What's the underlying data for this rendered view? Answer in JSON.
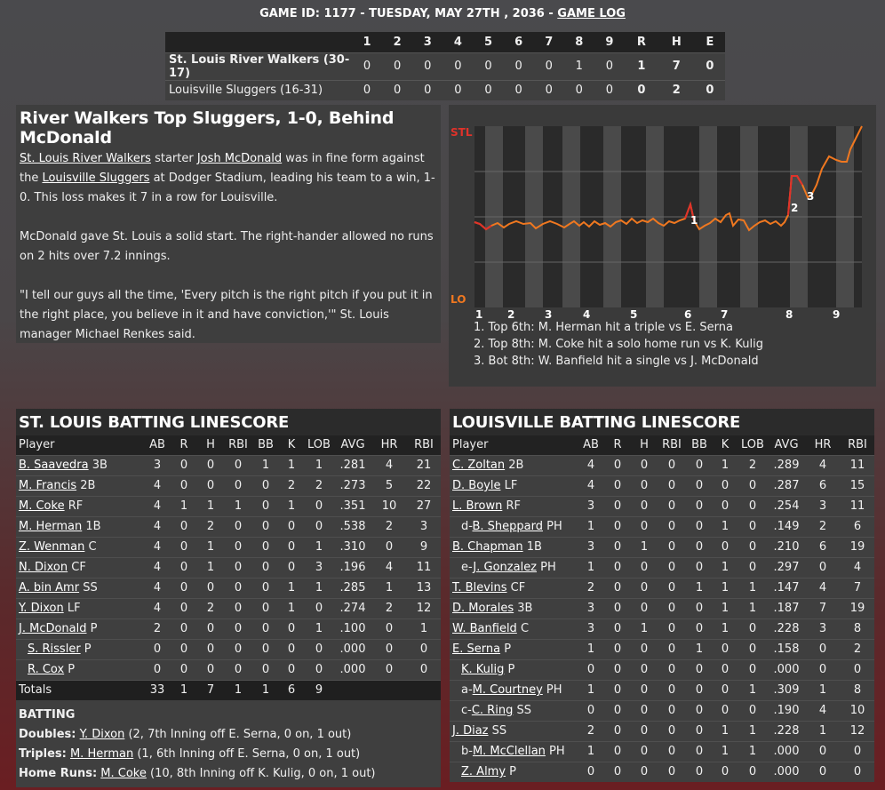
{
  "header": {
    "game_text": "GAME ID: 1177 - TUESDAY, MAY 27TH , 2036 - ",
    "game_log_link": "GAME LOG"
  },
  "linescore": {
    "innings": [
      "1",
      "2",
      "3",
      "4",
      "5",
      "6",
      "7",
      "8",
      "9",
      "R",
      "H",
      "E"
    ],
    "teams": [
      {
        "name": "St. Louis River Walkers (30-17)",
        "scores": [
          "0",
          "0",
          "0",
          "0",
          "0",
          "0",
          "0",
          "1",
          "0",
          "1",
          "7",
          "0"
        ]
      },
      {
        "name": "Louisville Sluggers (16-31)",
        "scores": [
          "0",
          "0",
          "0",
          "0",
          "0",
          "0",
          "0",
          "0",
          "0",
          "0",
          "2",
          "0"
        ]
      }
    ]
  },
  "recap": {
    "headline": "River Walkers Top Sluggers, 1-0, Behind McDonald",
    "p1_team": "St. Louis River Walkers",
    "p1_a": " starter ",
    "p1_player": "Josh McDonald",
    "p1_b": " was in fine form against the ",
    "p1_opp": "Louisville Sluggers",
    "p1_c": " at Dodger Stadium, leading his team to a win, 1-0. This loss makes it 7 in a row for Louisville.",
    "p2": "McDonald gave St. Louis a solid start. The right-hander allowed no runs on 2 hits over 7.2 innings.",
    "p3": "\"I tell our guys all the time, 'Every pitch is the right pitch if you put it in the right place, you believe in it and have conviction,'\" St. Louis manager Michael Renkes said."
  },
  "win_prob": {
    "top_label": "STL",
    "bottom_label": "LO",
    "top_color": "#e0322a",
    "bottom_color": "#f07820",
    "inning_labels": [
      "1",
      "2",
      "3",
      "4",
      "5",
      "6",
      "7",
      "8",
      "9"
    ],
    "markers": [
      "1",
      "2",
      "3"
    ],
    "notes": [
      "1. Top 6th: M. Herman hit a triple vs E. Serna",
      "2. Top 8th: M. Coke hit a solo home run vs K. Kulig",
      "3. Bot 8th: W. Banfield hit a single vs J. McDonald"
    ]
  },
  "stl_batting": {
    "title": "ST. LOUIS BATTING LINESCORE",
    "columns": [
      "Player",
      "AB",
      "R",
      "H",
      "RBI",
      "BB",
      "K",
      "LOB",
      "AVG",
      "HR",
      "RBI"
    ],
    "rows": [
      {
        "prefix": "",
        "name": "B. Saavedra",
        "pos": " 3B",
        "sub": false,
        "stats": [
          "3",
          "0",
          "0",
          "0",
          "1",
          "1",
          "1",
          ".281",
          "4",
          "21"
        ]
      },
      {
        "prefix": "",
        "name": "M. Francis",
        "pos": " 2B",
        "sub": false,
        "stats": [
          "4",
          "0",
          "0",
          "0",
          "0",
          "2",
          "2",
          ".273",
          "5",
          "22"
        ]
      },
      {
        "prefix": "",
        "name": "M. Coke",
        "pos": " RF",
        "sub": false,
        "stats": [
          "4",
          "1",
          "1",
          "1",
          "0",
          "1",
          "0",
          ".351",
          "10",
          "27"
        ]
      },
      {
        "prefix": "",
        "name": "M. Herman",
        "pos": " 1B",
        "sub": false,
        "stats": [
          "4",
          "0",
          "2",
          "0",
          "0",
          "0",
          "0",
          ".538",
          "2",
          "3"
        ]
      },
      {
        "prefix": "",
        "name": "Z. Wenman",
        "pos": " C",
        "sub": false,
        "stats": [
          "4",
          "0",
          "1",
          "0",
          "0",
          "0",
          "1",
          ".310",
          "0",
          "9"
        ]
      },
      {
        "prefix": "",
        "name": "N. Dixon",
        "pos": " CF",
        "sub": false,
        "stats": [
          "4",
          "0",
          "1",
          "0",
          "0",
          "0",
          "3",
          ".196",
          "4",
          "11"
        ]
      },
      {
        "prefix": "",
        "name": "A. bin Amr",
        "pos": " SS",
        "sub": false,
        "stats": [
          "4",
          "0",
          "0",
          "0",
          "0",
          "1",
          "1",
          ".285",
          "1",
          "13"
        ]
      },
      {
        "prefix": "",
        "name": "Y. Dixon",
        "pos": " LF",
        "sub": false,
        "stats": [
          "4",
          "0",
          "2",
          "0",
          "0",
          "1",
          "0",
          ".274",
          "2",
          "12"
        ]
      },
      {
        "prefix": "",
        "name": "J. McDonald",
        "pos": " P",
        "sub": false,
        "stats": [
          "2",
          "0",
          "0",
          "0",
          "0",
          "0",
          "1",
          ".100",
          "0",
          "1"
        ]
      },
      {
        "prefix": "",
        "name": "S. Rissler",
        "pos": " P",
        "sub": true,
        "stats": [
          "0",
          "0",
          "0",
          "0",
          "0",
          "0",
          "0",
          ".000",
          "0",
          "0"
        ]
      },
      {
        "prefix": "",
        "name": "R. Cox",
        "pos": " P",
        "sub": true,
        "stats": [
          "0",
          "0",
          "0",
          "0",
          "0",
          "0",
          "0",
          ".000",
          "0",
          "0"
        ]
      }
    ],
    "totals_label": "Totals",
    "totals": [
      "33",
      "1",
      "7",
      "1",
      "1",
      "6",
      "9",
      "",
      "",
      ""
    ],
    "notes_title": "BATTING",
    "doubles_label": "Doubles:",
    "doubles_player": "Y. Dixon",
    "doubles_text": " (2, 7th Inning off E. Serna, 0 on, 1 out)",
    "triples_label": "Triples:",
    "triples_player": "M. Herman",
    "triples_text": " (1, 6th Inning off E. Serna, 0 on, 1 out)",
    "hr_label": "Home Runs:",
    "hr_player": "M. Coke",
    "hr_text": " (10, 8th Inning off K. Kulig, 0 on, 1 out)"
  },
  "lou_batting": {
    "title": "LOUISVILLE BATTING LINESCORE",
    "columns": [
      "Player",
      "AB",
      "R",
      "H",
      "RBI",
      "BB",
      "K",
      "LOB",
      "AVG",
      "HR",
      "RBI"
    ],
    "rows": [
      {
        "prefix": "",
        "name": "C. Zoltan",
        "pos": " 2B",
        "sub": false,
        "stats": [
          "4",
          "0",
          "0",
          "0",
          "0",
          "1",
          "2",
          ".289",
          "4",
          "11"
        ]
      },
      {
        "prefix": "",
        "name": "D. Boyle",
        "pos": " LF",
        "sub": false,
        "stats": [
          "4",
          "0",
          "0",
          "0",
          "0",
          "0",
          "0",
          ".287",
          "6",
          "15"
        ]
      },
      {
        "prefix": "",
        "name": "L. Brown",
        "pos": " RF",
        "sub": false,
        "stats": [
          "3",
          "0",
          "0",
          "0",
          "0",
          "0",
          "0",
          ".254",
          "3",
          "11"
        ]
      },
      {
        "prefix": "d-",
        "name": "B. Sheppard",
        "pos": " PH",
        "sub": true,
        "stats": [
          "1",
          "0",
          "0",
          "0",
          "0",
          "1",
          "0",
          ".149",
          "2",
          "6"
        ]
      },
      {
        "prefix": "",
        "name": "B. Chapman",
        "pos": " 1B",
        "sub": false,
        "stats": [
          "3",
          "0",
          "1",
          "0",
          "0",
          "0",
          "0",
          ".210",
          "6",
          "19"
        ]
      },
      {
        "prefix": "e-",
        "name": "J. Gonzalez",
        "pos": " PH",
        "sub": true,
        "stats": [
          "1",
          "0",
          "0",
          "0",
          "0",
          "1",
          "0",
          ".297",
          "0",
          "4"
        ]
      },
      {
        "prefix": "",
        "name": "T. Blevins",
        "pos": " CF",
        "sub": false,
        "stats": [
          "2",
          "0",
          "0",
          "0",
          "1",
          "1",
          "1",
          ".147",
          "4",
          "7"
        ]
      },
      {
        "prefix": "",
        "name": "D. Morales",
        "pos": " 3B",
        "sub": false,
        "stats": [
          "3",
          "0",
          "0",
          "0",
          "0",
          "1",
          "1",
          ".187",
          "7",
          "19"
        ]
      },
      {
        "prefix": "",
        "name": "W. Banfield",
        "pos": " C",
        "sub": false,
        "stats": [
          "3",
          "0",
          "1",
          "0",
          "0",
          "1",
          "0",
          ".228",
          "3",
          "8"
        ]
      },
      {
        "prefix": "",
        "name": "E. Serna",
        "pos": " P",
        "sub": false,
        "stats": [
          "1",
          "0",
          "0",
          "0",
          "1",
          "0",
          "0",
          ".158",
          "0",
          "2"
        ]
      },
      {
        "prefix": "",
        "name": "K. Kulig",
        "pos": " P",
        "sub": true,
        "stats": [
          "0",
          "0",
          "0",
          "0",
          "0",
          "0",
          "0",
          ".000",
          "0",
          "0"
        ]
      },
      {
        "prefix": "a-",
        "name": "M. Courtney",
        "pos": " PH",
        "sub": true,
        "stats": [
          "1",
          "0",
          "0",
          "0",
          "0",
          "0",
          "1",
          ".309",
          "1",
          "8"
        ]
      },
      {
        "prefix": "c-",
        "name": "C. Ring",
        "pos": " SS",
        "sub": true,
        "stats": [
          "0",
          "0",
          "0",
          "0",
          "0",
          "0",
          "0",
          ".190",
          "4",
          "10"
        ]
      },
      {
        "prefix": "",
        "name": "J. Diaz",
        "pos": " SS",
        "sub": false,
        "stats": [
          "2",
          "0",
          "0",
          "0",
          "0",
          "1",
          "1",
          ".228",
          "1",
          "12"
        ]
      },
      {
        "prefix": "b-",
        "name": "M. McClellan",
        "pos": " PH",
        "sub": true,
        "stats": [
          "1",
          "0",
          "0",
          "0",
          "0",
          "1",
          "1",
          ".000",
          "0",
          "0"
        ]
      },
      {
        "prefix": "",
        "name": "Z. Almy",
        "pos": " P",
        "sub": true,
        "stats": [
          "0",
          "0",
          "0",
          "0",
          "0",
          "0",
          "0",
          ".000",
          "0",
          "0"
        ]
      }
    ]
  }
}
